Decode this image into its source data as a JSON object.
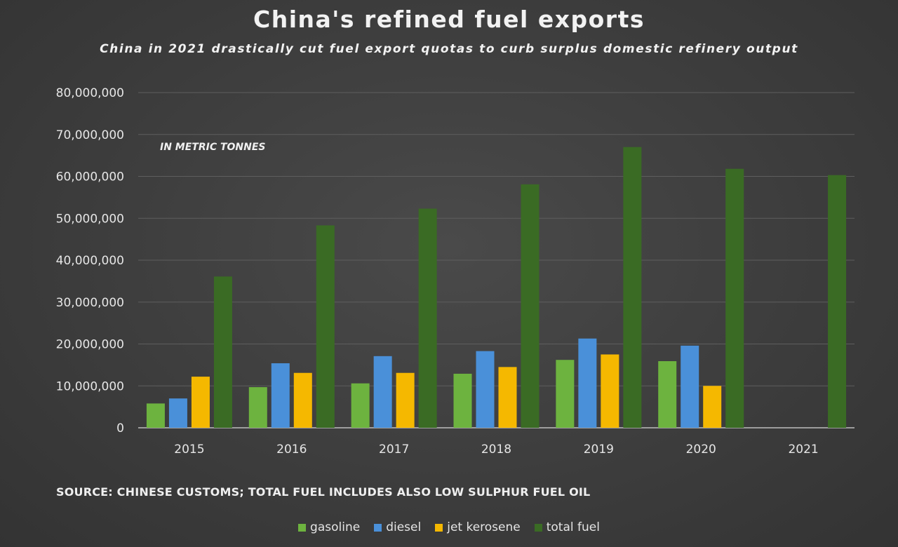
{
  "chart_data": {
    "type": "bar",
    "title": "China's refined fuel exports",
    "subtitle": "China in 2021 drastically cut fuel export quotas to curb surplus domestic refinery output",
    "unit_note": "IN METRIC TONNES",
    "source": "SOURCE: CHINESE CUSTOMS; TOTAL FUEL INCLUDES ALSO LOW SULPHUR FUEL OIL",
    "categories": [
      "2015",
      "2016",
      "2017",
      "2018",
      "2019",
      "2020",
      "2021"
    ],
    "ylim": [
      0,
      80000000
    ],
    "yticks": [
      "0",
      "10,000,000",
      "20,000,000",
      "30,000,000",
      "40,000,000",
      "50,000,000",
      "60,000,000",
      "70,000,000",
      "80,000,000"
    ],
    "grid": true,
    "legend_position": "bottom",
    "series": [
      {
        "name": "gasoline",
        "color": "#6db33f",
        "values": [
          5800000,
          9700000,
          10600000,
          12900000,
          16200000,
          15900000,
          null
        ]
      },
      {
        "name": "diesel",
        "color": "#4a90d9",
        "values": [
          7000000,
          15400000,
          17100000,
          18300000,
          21300000,
          19600000,
          null
        ]
      },
      {
        "name": "jet kerosene",
        "color": "#f5b800",
        "values": [
          12200000,
          13100000,
          13100000,
          14500000,
          17500000,
          10000000,
          null
        ]
      },
      {
        "name": "total fuel",
        "color": "#3a6b24",
        "values": [
          36100000,
          48300000,
          52300000,
          58100000,
          67000000,
          61800000,
          60300000
        ]
      }
    ]
  }
}
